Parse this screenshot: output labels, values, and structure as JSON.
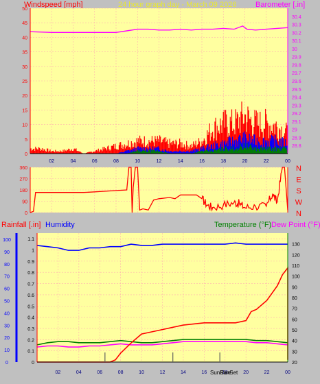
{
  "header": {
    "title": "24 hour graph day - March 09 2026",
    "windspeed_label": "Windspeed [mph]",
    "barometer_label": "Barometer [.in]",
    "rainfall_label": "Rainfall [.in]",
    "humidity_label": "Humidity",
    "temperature_label": "Temperature (°F)",
    "dewpoint_label": "Dew Point (°F)",
    "sunrise_label": "SunRise",
    "sunset_label": "SunSet"
  },
  "colors": {
    "background": "#c0c0c0",
    "plot_bg": "#ffffa0",
    "grid": "#ffb0b0",
    "wind_gust": "#ff0000",
    "wind_avg": "#0000ff",
    "wind_low": "#008000",
    "barometer": "#ff00ff",
    "direction": "#ff0000",
    "rainfall": "#ff0000",
    "humidity": "#0000ff",
    "temperature": "#008000",
    "dewpoint": "#ff00ff",
    "title_color": "#e8e830"
  },
  "chart_data": [
    {
      "type": "line",
      "title": "24 hour graph day - March 09 2026",
      "x_ticks": [
        "02",
        "04",
        "06",
        "08",
        "10",
        "12",
        "14",
        "16",
        "18",
        "20",
        "22",
        "00"
      ],
      "xlim": [
        0,
        24
      ],
      "ylabel": "Windspeed [mph]",
      "ylim": [
        0,
        50
      ],
      "y_ticks": [
        0,
        5,
        10,
        15,
        20,
        25,
        30,
        35,
        40,
        45,
        50
      ],
      "y2label": "Barometer [.in]",
      "y2lim": [
        28.7,
        30.5
      ],
      "y2_ticks": [
        "28.8",
        "28.9",
        "29",
        "29.1",
        "29.2",
        "29.3",
        "29.4",
        "29.5",
        "29.6",
        "29.7",
        "29.8",
        "29.9",
        "30",
        "30.1",
        "30.2",
        "30.3",
        "30.4"
      ],
      "grid": true,
      "series": [
        {
          "name": "Barometer [.in]",
          "axis": "right",
          "x": [
            0,
            2,
            4,
            6,
            8,
            9,
            10,
            11,
            12,
            13,
            14,
            15,
            16,
            17,
            18,
            19,
            19.8,
            20.2,
            21,
            22,
            23,
            24
          ],
          "values": [
            30.21,
            30.2,
            30.2,
            30.2,
            30.2,
            30.22,
            30.24,
            30.24,
            30.23,
            30.23,
            30.24,
            30.23,
            30.24,
            30.24,
            30.25,
            30.24,
            30.28,
            30.24,
            30.23,
            30.24,
            30.25,
            30.26
          ]
        },
        {
          "name": "Wind gust",
          "axis": "left",
          "style": "spiky",
          "x": [
            0,
            1,
            2,
            3,
            4,
            5,
            6,
            7,
            8,
            9,
            10,
            11,
            12,
            13,
            14,
            15,
            16,
            17,
            18,
            19,
            20,
            21,
            22,
            23,
            24
          ],
          "values": [
            2,
            2,
            1,
            1,
            2,
            0,
            1,
            2,
            3,
            4,
            5,
            5,
            5,
            4,
            4,
            3,
            5,
            10,
            12,
            12,
            15,
            12,
            12,
            11,
            8
          ]
        },
        {
          "name": "Wind average",
          "axis": "left",
          "style": "spiky",
          "x": [
            0,
            2,
            4,
            6,
            8,
            9,
            10,
            11,
            12,
            13,
            14,
            15,
            16,
            17,
            18,
            19,
            20,
            21,
            22,
            23,
            24
          ],
          "values": [
            0,
            0,
            0,
            0,
            0,
            1,
            2,
            2,
            2,
            1,
            1,
            1,
            2,
            3,
            4,
            5,
            6,
            5,
            5,
            5,
            4
          ]
        },
        {
          "name": "Wind low",
          "axis": "left",
          "style": "spiky",
          "x": [
            0,
            2,
            4,
            6,
            8,
            9,
            10,
            11,
            12,
            13,
            14,
            15,
            16,
            17,
            18,
            19,
            20,
            21,
            22,
            23,
            24
          ],
          "values": [
            0,
            0,
            0,
            0,
            0,
            0,
            1,
            1,
            1,
            0,
            0,
            0,
            1,
            1,
            2,
            2,
            3,
            2,
            2,
            2,
            2
          ]
        }
      ]
    },
    {
      "type": "line",
      "x_ticks": [],
      "xlim": [
        0,
        24
      ],
      "ylim": [
        0,
        360
      ],
      "y_ticks": [
        0,
        90,
        180,
        270,
        360
      ],
      "y2_ticks": [
        "N",
        "W",
        "S",
        "E",
        "N"
      ],
      "series": [
        {
          "name": "Wind direction",
          "axis": "left",
          "x": [
            0,
            0.3,
            0.5,
            1,
            2,
            3,
            4,
            5,
            6,
            7,
            8,
            9,
            9.2,
            9.4,
            9.5,
            9.6,
            9.8,
            10,
            10.2,
            10.5,
            11,
            11.5,
            12,
            13,
            13.5,
            14,
            15,
            15.5,
            16,
            16.5,
            17,
            18,
            19,
            19.5,
            20,
            21,
            22,
            22.6,
            23,
            23.5,
            23.7,
            24
          ],
          "values": [
            0,
            10,
            160,
            160,
            160,
            160,
            160,
            160,
            165,
            170,
            175,
            180,
            360,
            360,
            0,
            200,
            360,
            360,
            20,
            30,
            20,
            100,
            110,
            120,
            110,
            140,
            140,
            140,
            110,
            60,
            40,
            60,
            80,
            70,
            40,
            50,
            50,
            150,
            80,
            360,
            360,
            20
          ]
        }
      ]
    },
    {
      "type": "line",
      "x_ticks": [
        "02",
        "04",
        "06",
        "08",
        "10",
        "12",
        "14",
        "16",
        "18",
        "20",
        "22",
        "00"
      ],
      "xlim": [
        0,
        24
      ],
      "ylabel": "Rainfall [.in]",
      "ylim": [
        0,
        1.15
      ],
      "y_ticks": [
        "0",
        "0.1",
        "0.2",
        "0.3",
        "0.4",
        "0.5",
        "0.6",
        "0.7",
        "0.8",
        "0.9",
        "1",
        "1.1"
      ],
      "y_ticks_humidity": [
        0,
        10,
        20,
        30,
        40,
        50,
        60,
        70,
        80,
        90,
        100
      ],
      "y2label": "Temperature (°F) / Dew Point (°F)",
      "y2lim": [
        20,
        140
      ],
      "y2_ticks": [
        20,
        30,
        40,
        50,
        60,
        70,
        80,
        90,
        100,
        110,
        120,
        130
      ],
      "annotations": [
        "SunRise",
        "SunSet"
      ],
      "series": [
        {
          "name": "Rainfall [.in]",
          "axis": "left",
          "x": [
            0,
            6,
            7,
            7.5,
            8,
            9,
            10,
            11,
            12,
            13,
            14,
            15,
            16,
            17,
            18,
            19,
            20,
            20.5,
            21,
            22,
            23,
            23.5,
            24,
            24
          ],
          "values": [
            0,
            0,
            0,
            0.02,
            0.08,
            0.17,
            0.25,
            0.27,
            0.29,
            0.31,
            0.33,
            0.34,
            0.35,
            0.35,
            0.35,
            0.35,
            0.37,
            0.45,
            0.47,
            0.55,
            0.68,
            0.78,
            0.84,
            0.02
          ]
        },
        {
          "name": "Humidity",
          "axis": "humidity",
          "x": [
            0,
            1,
            2,
            3,
            4,
            5,
            6,
            7,
            8,
            9,
            10,
            11,
            12,
            13,
            14,
            15,
            16,
            17,
            18,
            19,
            20,
            21,
            22,
            23,
            24
          ],
          "values": [
            95,
            94,
            93,
            91,
            91,
            93,
            93,
            94,
            94,
            96,
            95,
            95,
            96,
            96,
            96,
            96,
            96,
            96,
            96,
            97,
            96,
            96,
            96,
            96,
            96
          ]
        },
        {
          "name": "Temperature (°F)",
          "axis": "right",
          "x": [
            0,
            1,
            2,
            3,
            4,
            5,
            6,
            7,
            8,
            9,
            10,
            11,
            12,
            13,
            14,
            15,
            16,
            17,
            18,
            19,
            20,
            21,
            22,
            23,
            24
          ],
          "values": [
            36,
            38,
            39,
            39,
            38,
            38,
            38,
            39,
            40,
            39,
            38,
            38,
            39,
            40,
            41,
            41,
            41,
            41,
            41,
            41,
            41,
            40,
            40,
            39,
            38
          ]
        },
        {
          "name": "Dew Point (°F)",
          "axis": "right",
          "x": [
            0,
            1,
            2,
            3,
            4,
            5,
            6,
            7,
            8,
            9,
            10,
            11,
            12,
            13,
            14,
            15,
            16,
            17,
            18,
            19,
            20,
            21,
            22,
            23,
            24
          ],
          "values": [
            34,
            35,
            35,
            34,
            34,
            35,
            35,
            36,
            37,
            36,
            36,
            36,
            37,
            38,
            39,
            39,
            39,
            39,
            39,
            39,
            39,
            38,
            38,
            37,
            36
          ]
        }
      ],
      "vertical_markers": [
        6.5,
        13,
        17.5
      ]
    }
  ]
}
